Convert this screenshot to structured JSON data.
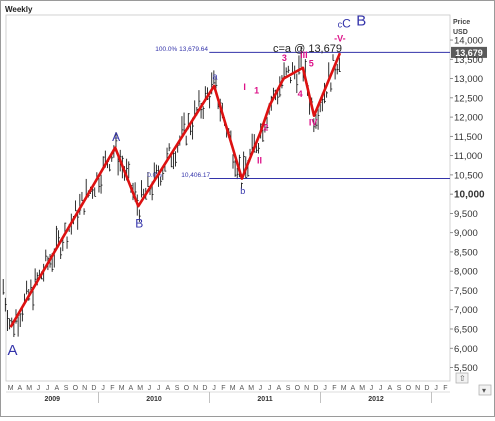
{
  "chart_data": {
    "type": "line",
    "timeframe_label": "Weekly",
    "currency_label": [
      "Price",
      "USD"
    ],
    "y_axis": {
      "range": [
        5150,
        14650
      ],
      "ticks": [
        "5,500",
        "6,000",
        "6,500",
        "7,000",
        "7,500",
        "8,000",
        "8,500",
        "9,000",
        "9,500",
        "10,000",
        "10,500",
        "11,000",
        "11,500",
        "12,000",
        "12,500",
        "13,000",
        "13,500",
        "14,000"
      ],
      "tick_values": [
        5500,
        6000,
        6500,
        7000,
        7500,
        8000,
        8500,
        9000,
        9500,
        10000,
        10500,
        11000,
        11500,
        12000,
        12500,
        13000,
        13500,
        14000
      ],
      "bold_ticks": [
        "10,000"
      ]
    },
    "x_axis": {
      "month_labels": [
        "M",
        "A",
        "M",
        "J",
        "J",
        "A",
        "S",
        "O",
        "N",
        "D",
        "J",
        "F",
        "M",
        "A",
        "M",
        "J",
        "J",
        "A",
        "S",
        "O",
        "N",
        "D",
        "J",
        "F",
        "M",
        "A",
        "M",
        "J",
        "J",
        "A",
        "S",
        "O",
        "N",
        "D",
        "J",
        "F",
        "M",
        "A",
        "M",
        "J",
        "J",
        "A",
        "S",
        "O",
        "N",
        "D",
        "J",
        "F"
      ],
      "year_labels": [
        "2009",
        "2010",
        "2011",
        "2012"
      ],
      "year_start_month_index": [
        10,
        22,
        34,
        46
      ]
    },
    "wave_path": {
      "color": "#dd1111",
      "points": [
        {
          "t": 0.0,
          "y": 6547
        },
        {
          "t": 11.3,
          "y": 11205
        },
        {
          "t": 13.8,
          "y": 9686
        },
        {
          "t": 22.0,
          "y": 12810
        },
        {
          "t": 25.0,
          "y": 10404
        },
        {
          "t": 26.0,
          "y": 11000
        },
        {
          "t": 27.0,
          "y": 11600
        },
        {
          "t": 28.0,
          "y": 12300
        },
        {
          "t": 29.5,
          "y": 13000
        },
        {
          "t": 31.6,
          "y": 13279
        },
        {
          "t": 32.8,
          "y": 12035
        },
        {
          "t": 35.6,
          "y": 13661
        }
      ]
    },
    "fibonacci": {
      "color": "#3333aa",
      "levels": [
        {
          "label": "100.0% 13,679.64",
          "value": 13679.64,
          "t_start": 33.5,
          "t_end": 38.5
        },
        {
          "label": "0.0%",
          "value_label": "10,406.17",
          "value": 10406.17,
          "t_start": 32.5,
          "t_end": 38.5
        }
      ],
      "line_extent": {
        "t_start": 24.5,
        "t_end": 45.2
      }
    },
    "annotation": "c=a @ 13,679",
    "price_badge": "13,679",
    "wave_labels": [
      {
        "text": "A",
        "t": 0.2,
        "y": 5830,
        "color": "#3333aa",
        "size": "large"
      },
      {
        "text": "A",
        "t": 11.4,
        "y": 11380,
        "color": "#3333aa",
        "size": "medium"
      },
      {
        "text": "B",
        "t": 13.9,
        "y": 9130,
        "color": "#3333aa",
        "size": "medium"
      },
      {
        "text": "a",
        "t": 22.1,
        "y": 12980,
        "color": "#3333aa",
        "size": "small"
      },
      {
        "text": "b",
        "t": 25.1,
        "y": 10000,
        "color": "#3333aa",
        "size": "small"
      },
      {
        "text": "I",
        "t": 25.3,
        "y": 12700,
        "color": "#dd1188",
        "size": "small"
      },
      {
        "text": "1",
        "t": 26.6,
        "y": 12610,
        "color": "#dd1188",
        "size": "small"
      },
      {
        "text": "2",
        "t": 27.6,
        "y": 11650,
        "color": "#dd1188",
        "size": "small"
      },
      {
        "text": "II",
        "t": 26.9,
        "y": 10790,
        "color": "#dd1188",
        "size": "small"
      },
      {
        "text": "3",
        "t": 29.6,
        "y": 13450,
        "color": "#dd1188",
        "size": "small"
      },
      {
        "text": "III",
        "t": 31.7,
        "y": 13540,
        "color": "#dd1188",
        "size": "small"
      },
      {
        "text": "5",
        "t": 32.5,
        "y": 13310,
        "color": "#dd1188",
        "size": "small"
      },
      {
        "text": "4",
        "t": 31.3,
        "y": 12520,
        "color": "#dd1188",
        "size": "small"
      },
      {
        "text": "IV",
        "t": 32.7,
        "y": 11780,
        "color": "#dd1188",
        "size": "small"
      },
      {
        "text": "-V-",
        "t": 35.6,
        "y": 13960,
        "color": "#dd1188",
        "size": "small"
      },
      {
        "text": "c",
        "t": 35.6,
        "y": 14330,
        "color": "#3333aa",
        "size": "small"
      },
      {
        "text": "C",
        "t": 36.3,
        "y": 14330,
        "color": "#3333aa",
        "size": "medium"
      },
      {
        "text": "B",
        "t": 37.9,
        "y": 14380,
        "color": "#3333aa",
        "size": "large"
      }
    ]
  }
}
